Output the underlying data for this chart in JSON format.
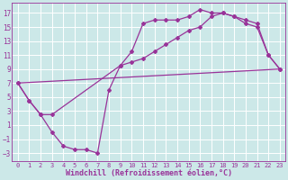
{
  "xlabel": "Windchill (Refroidissement éolien,°C)",
  "bg_color": "#cce8e8",
  "line_color": "#993399",
  "grid_color": "#ffffff",
  "xlim": [
    -0.5,
    23.5
  ],
  "ylim": [
    -4.2,
    18.5
  ],
  "yticks": [
    -3,
    -1,
    1,
    3,
    5,
    7,
    9,
    11,
    13,
    15,
    17
  ],
  "xticks": [
    0,
    1,
    2,
    3,
    4,
    5,
    6,
    7,
    8,
    9,
    10,
    11,
    12,
    13,
    14,
    15,
    16,
    17,
    18,
    19,
    20,
    21,
    22,
    23
  ],
  "line1_x": [
    0,
    1,
    2,
    3,
    4,
    5,
    6,
    7,
    8,
    9,
    10,
    11,
    12,
    13,
    14,
    15,
    16,
    17,
    18,
    19,
    20,
    21,
    22,
    23
  ],
  "line1_y": [
    7,
    4.5,
    2.5,
    0.0,
    -2.0,
    -2.5,
    -2.5,
    -3.0,
    6.0,
    9.5,
    11.5,
    15.5,
    16.0,
    16.0,
    16.0,
    16.5,
    17.5,
    17.0,
    17.0,
    16.5,
    15.5,
    15.0,
    11.0,
    9.0
  ],
  "line2_x": [
    0,
    1,
    2,
    3,
    9,
    10,
    11,
    12,
    13,
    14,
    15,
    16,
    17,
    18,
    19,
    20,
    21,
    22,
    23
  ],
  "line2_y": [
    7,
    4.5,
    2.5,
    2.5,
    9.5,
    10.0,
    10.5,
    11.5,
    12.5,
    13.5,
    14.5,
    15.0,
    16.5,
    17.0,
    16.5,
    16.0,
    15.5,
    11.0,
    9.0
  ],
  "line3_x": [
    0,
    23
  ],
  "line3_y": [
    7.0,
    9.0
  ]
}
